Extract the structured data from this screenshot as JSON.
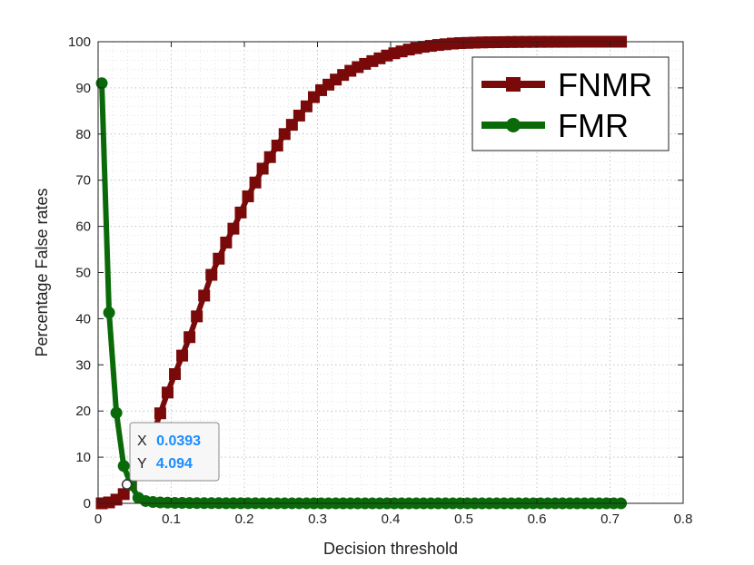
{
  "chart_data": {
    "type": "line",
    "xlabel": "Decision threshold",
    "ylabel": "Percentage False rates",
    "xlim": [
      0,
      0.8
    ],
    "ylim": [
      0,
      100
    ],
    "xticks": [
      "0",
      "0.1",
      "0.2",
      "0.3",
      "0.4",
      "0.5",
      "0.6",
      "0.7",
      "0.8"
    ],
    "yticks": [
      "0",
      "10",
      "20",
      "30",
      "40",
      "50",
      "60",
      "70",
      "80",
      "90",
      "100"
    ],
    "grid": true,
    "legend_position": "top-right",
    "series": [
      {
        "name": "FNMR",
        "color": "#7a0a0a",
        "marker": "square",
        "x": [
          0.005,
          0.015,
          0.025,
          0.035,
          0.045,
          0.055,
          0.065,
          0.075,
          0.085,
          0.095,
          0.105,
          0.115,
          0.125,
          0.135,
          0.145,
          0.155,
          0.165,
          0.175,
          0.185,
          0.195,
          0.205,
          0.215,
          0.225,
          0.235,
          0.245,
          0.255,
          0.265,
          0.275,
          0.285,
          0.295,
          0.305,
          0.315,
          0.325,
          0.335,
          0.345,
          0.355,
          0.365,
          0.375,
          0.385,
          0.395,
          0.405,
          0.415,
          0.425,
          0.435,
          0.445,
          0.455,
          0.465,
          0.475,
          0.485,
          0.495,
          0.505,
          0.515,
          0.525,
          0.535,
          0.545,
          0.555,
          0.565,
          0.575,
          0.585,
          0.595,
          0.605,
          0.615,
          0.625,
          0.635,
          0.645,
          0.655,
          0.665,
          0.675,
          0.685,
          0.695,
          0.705,
          0.715
        ],
        "y": [
          0,
          0.2,
          0.8,
          2,
          4,
          7,
          10.5,
          15,
          19.5,
          24,
          28,
          32,
          36,
          40.5,
          45,
          49.5,
          53,
          56.5,
          59.5,
          63,
          66.5,
          69.5,
          72.5,
          75,
          77.5,
          80,
          82,
          84,
          86,
          88,
          89.5,
          90.7,
          91.8,
          92.8,
          93.7,
          94.5,
          95.2,
          95.8,
          96.4,
          97,
          97.5,
          97.9,
          98.3,
          98.6,
          98.9,
          99.1,
          99.3,
          99.45,
          99.6,
          99.7,
          99.75,
          99.8,
          99.85,
          99.88,
          99.9,
          99.92,
          99.94,
          99.95,
          99.96,
          99.97,
          99.98,
          99.98,
          99.99,
          99.99,
          99.99,
          100,
          100,
          100,
          100,
          100,
          100,
          100
        ]
      },
      {
        "name": "FMR",
        "color": "#0a6a0a",
        "marker": "circle",
        "x": [
          0.005,
          0.015,
          0.025,
          0.035,
          0.045,
          0.055,
          0.065,
          0.075,
          0.085,
          0.095,
          0.105,
          0.115,
          0.125,
          0.135,
          0.145,
          0.155,
          0.165,
          0.175,
          0.185,
          0.195,
          0.205,
          0.215,
          0.225,
          0.235,
          0.245,
          0.255,
          0.265,
          0.275,
          0.285,
          0.295,
          0.305,
          0.315,
          0.325,
          0.335,
          0.345,
          0.355,
          0.365,
          0.375,
          0.385,
          0.395,
          0.405,
          0.415,
          0.425,
          0.435,
          0.445,
          0.455,
          0.465,
          0.475,
          0.485,
          0.495,
          0.505,
          0.515,
          0.525,
          0.535,
          0.545,
          0.555,
          0.565,
          0.575,
          0.585,
          0.595,
          0.605,
          0.615,
          0.625,
          0.635,
          0.645,
          0.655,
          0.665,
          0.675,
          0.685,
          0.695,
          0.705,
          0.715
        ],
        "y": [
          91,
          41.3,
          19.6,
          8.1,
          4,
          1.2,
          0.5,
          0.3,
          0.2,
          0.15,
          0.1,
          0.1,
          0.08,
          0.06,
          0.05,
          0.05,
          0.04,
          0.03,
          0.03,
          0.02,
          0.02,
          0.02,
          0.01,
          0.01,
          0.01,
          0.01,
          0.01,
          0.01,
          0.01,
          0,
          0,
          0,
          0,
          0,
          0,
          0,
          0,
          0,
          0,
          0,
          0,
          0,
          0,
          0,
          0,
          0,
          0,
          0,
          0,
          0,
          0,
          0,
          0,
          0,
          0,
          0,
          0,
          0,
          0,
          0,
          0,
          0,
          0,
          0,
          0,
          0,
          0,
          0,
          0,
          0,
          0,
          0
        ]
      }
    ],
    "datatip": {
      "x_key": "X",
      "x_value": "0.0393",
      "y_key": "Y",
      "y_value": "4.094",
      "point_x": 0.0393,
      "point_y": 4.094
    }
  }
}
